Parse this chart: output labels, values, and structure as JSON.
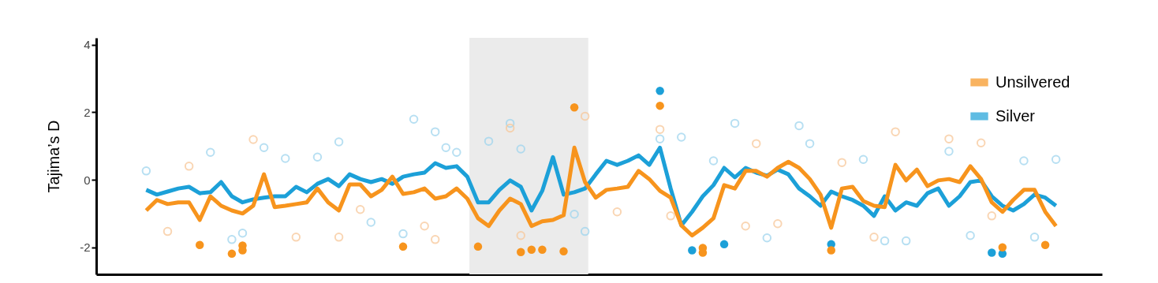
{
  "chart_data": {
    "type": "line",
    "ylabel": "Tajima’s D",
    "categories": [
      null,
      null,
      null,
      null,
      null,
      null,
      null,
      null,
      null,
      null,
      null,
      null,
      null,
      null,
      null,
      null,
      null,
      null,
      null,
      null,
      null,
      null,
      null,
      null,
      null,
      null,
      null,
      null,
      null,
      null,
      null,
      null,
      null,
      null,
      null,
      null,
      null,
      null,
      null,
      null,
      null,
      null,
      null,
      null,
      null,
      null,
      null,
      null,
      null,
      null,
      null,
      null,
      null,
      null,
      null,
      null,
      null,
      null,
      null,
      null,
      null,
      null,
      null,
      null,
      null,
      null,
      null,
      null,
      null,
      null,
      null,
      null,
      null,
      null,
      null,
      null,
      null,
      null,
      null,
      null,
      null,
      null,
      null,
      null,
      null,
      null
    ],
    "ylim": [
      -2.8,
      4.2
    ],
    "yticks": [
      -2,
      0,
      2,
      4
    ],
    "tick_labels": "y",
    "legend": "top right",
    "line_style": "solid",
    "series": [
      {
        "type": "scatter",
        "marker": "circle",
        "color": "#9fd5ee",
        "values": [
          0.26,
          null,
          null,
          null,
          null,
          null,
          0.81,
          null,
          -1.77,
          -1.58,
          null,
          0.95,
          null,
          0.63,
          null,
          null,
          0.67,
          null,
          1.12,
          null,
          null,
          -1.26,
          null,
          null,
          -1.6,
          1.79,
          null,
          1.42,
          0.95,
          0.81,
          null,
          null,
          1.14,
          null,
          1.67,
          0.91,
          null,
          null,
          null,
          null,
          -1.02,
          -1.53,
          null,
          null,
          null,
          null,
          null,
          null,
          1.21,
          null,
          1.26,
          null,
          null,
          0.56,
          null,
          1.67,
          null,
          null,
          -1.72,
          null,
          null,
          1.6,
          1.07,
          null,
          null,
          null,
          null,
          0.6,
          null,
          -1.81,
          null,
          -1.81,
          null,
          null,
          null,
          0.84,
          null,
          -1.65,
          null,
          null,
          null,
          null,
          0.56,
          -1.7,
          null,
          0.6
        ]
      },
      {
        "type": "scatter",
        "marker": "circle",
        "color": "#f8c89a",
        "values": [
          null,
          null,
          -1.53,
          null,
          0.4,
          null,
          null,
          null,
          null,
          null,
          1.19,
          null,
          null,
          null,
          -1.7,
          null,
          null,
          null,
          -1.7,
          null,
          -0.88,
          null,
          null,
          null,
          null,
          null,
          -1.37,
          -1.77,
          null,
          null,
          null,
          null,
          null,
          null,
          1.53,
          -1.65,
          null,
          null,
          null,
          null,
          null,
          1.88,
          null,
          null,
          -0.95,
          null,
          null,
          null,
          1.49,
          -1.07,
          null,
          null,
          null,
          null,
          null,
          null,
          -1.37,
          1.07,
          null,
          -1.3,
          null,
          null,
          null,
          null,
          null,
          0.51,
          null,
          null,
          -1.7,
          null,
          1.42,
          null,
          null,
          null,
          null,
          1.21,
          null,
          null,
          1.09,
          -1.07,
          null,
          null,
          null,
          null,
          null,
          null
        ]
      },
      {
        "name": "Silver",
        "color": "#1ca0d8",
        "values": [
          -0.3,
          -0.44,
          -0.35,
          -0.26,
          -0.21,
          -0.4,
          -0.37,
          -0.07,
          -0.49,
          -0.67,
          -0.58,
          -0.53,
          -0.49,
          -0.49,
          -0.21,
          -0.37,
          -0.12,
          0.02,
          -0.19,
          0.16,
          0.02,
          -0.07,
          0.02,
          -0.12,
          0.09,
          0.16,
          0.21,
          0.49,
          0.35,
          0.4,
          0.09,
          -0.67,
          -0.67,
          -0.3,
          -0.02,
          -0.21,
          -0.91,
          -0.33,
          0.67,
          -0.44,
          -0.37,
          -0.26,
          0.16,
          0.56,
          0.44,
          0.56,
          0.72,
          0.44,
          0.95,
          -0.26,
          -1.35,
          -0.95,
          -0.49,
          -0.16,
          0.35,
          0.07,
          0.35,
          0.21,
          0.12,
          0.3,
          0.16,
          -0.26,
          -0.49,
          -0.77,
          -0.35,
          -0.49,
          -0.6,
          -0.77,
          -1.07,
          -0.49,
          -0.91,
          -0.67,
          -0.77,
          -0.4,
          -0.26,
          -0.77,
          -0.49,
          -0.07,
          -0.02,
          -0.49,
          -0.77,
          -0.91,
          -0.72,
          -0.44,
          -0.53,
          -0.77
        ]
      },
      {
        "name": "Unsilvered",
        "color": "#f7941d",
        "values": [
          -0.91,
          -0.6,
          -0.72,
          -0.67,
          -0.67,
          -1.19,
          -0.49,
          -0.77,
          -0.91,
          -1.0,
          -0.77,
          0.16,
          -0.81,
          -0.77,
          -0.72,
          -0.67,
          -0.26,
          -0.67,
          -0.91,
          -0.14,
          -0.14,
          -0.49,
          -0.3,
          0.09,
          -0.42,
          -0.37,
          -0.26,
          -0.56,
          -0.49,
          -0.26,
          -0.56,
          -1.14,
          -1.37,
          -0.91,
          -0.56,
          -0.72,
          -1.37,
          -1.23,
          -1.19,
          -1.05,
          0.95,
          -0.07,
          -0.53,
          -0.3,
          -0.26,
          -0.21,
          0.26,
          0.02,
          -0.33,
          -0.53,
          -1.35,
          -1.65,
          -1.42,
          -1.14,
          -0.16,
          -0.26,
          0.26,
          0.26,
          0.09,
          0.35,
          0.53,
          0.35,
          0.02,
          -0.44,
          -1.42,
          -0.26,
          -0.21,
          -0.63,
          -0.77,
          -0.81,
          0.44,
          -0.02,
          0.3,
          -0.19,
          -0.02,
          0.02,
          -0.07,
          0.4,
          0.02,
          -0.67,
          -0.95,
          -0.6,
          -0.3,
          -0.3,
          -0.95,
          -1.37
        ]
      },
      {
        "type": "scatter",
        "marker": "circle",
        "color": "#1ca0d8",
        "values": [
          null,
          null,
          null,
          null,
          null,
          null,
          null,
          null,
          null,
          null,
          null,
          null,
          null,
          null,
          null,
          null,
          null,
          null,
          null,
          null,
          null,
          null,
          null,
          null,
          null,
          null,
          null,
          null,
          null,
          null,
          null,
          null,
          null,
          null,
          null,
          null,
          null,
          null,
          null,
          null,
          null,
          null,
          null,
          null,
          null,
          null,
          null,
          null,
          2.63,
          null,
          null,
          -2.09,
          null,
          null,
          -1.91,
          null,
          null,
          null,
          null,
          null,
          null,
          null,
          null,
          null,
          -1.91,
          null,
          null,
          null,
          null,
          null,
          null,
          null,
          null,
          null,
          null,
          null,
          null,
          null,
          null,
          -2.16,
          null,
          null,
          null,
          null,
          null,
          null
        ]
      },
      {
        "type": "scatter",
        "marker": "circle",
        "color": "#1ca0d8",
        "values": [
          null,
          null,
          null,
          null,
          null,
          null,
          null,
          null,
          null,
          null,
          null,
          null,
          null,
          null,
          null,
          null,
          null,
          null,
          null,
          null,
          null,
          null,
          null,
          null,
          null,
          null,
          null,
          null,
          null,
          null,
          null,
          null,
          null,
          null,
          null,
          null,
          null,
          null,
          null,
          null,
          null,
          null,
          null,
          null,
          null,
          null,
          null,
          null,
          null,
          null,
          null,
          null,
          null,
          null,
          null,
          null,
          null,
          null,
          null,
          null,
          null,
          null,
          null,
          null,
          null,
          null,
          null,
          null,
          null,
          null,
          null,
          null,
          null,
          null,
          null,
          null,
          null,
          null,
          null,
          null,
          -2.19,
          null,
          null,
          null,
          null,
          null
        ]
      },
      {
        "type": "scatter",
        "marker": "circle",
        "color": "#f7941d",
        "values": [
          null,
          null,
          null,
          null,
          null,
          -1.93,
          null,
          null,
          -2.19,
          -1.95,
          null,
          null,
          null,
          null,
          null,
          null,
          null,
          null,
          null,
          null,
          null,
          null,
          null,
          null,
          -1.98,
          null,
          null,
          null,
          null,
          null,
          null,
          -1.98,
          null,
          null,
          null,
          -2.14,
          -2.07,
          -2.07,
          null,
          -2.12,
          2.14,
          null,
          null,
          null,
          null,
          null,
          null,
          null,
          2.19,
          null,
          null,
          null,
          -2.02,
          null,
          null,
          null,
          null,
          null,
          null,
          null,
          null,
          null,
          null,
          null,
          -2.09,
          null,
          null,
          null,
          null,
          null,
          null,
          null,
          null,
          null,
          null,
          null,
          null,
          null,
          null,
          null,
          -2.0,
          null,
          null,
          null,
          -1.93,
          null
        ]
      },
      {
        "type": "scatter",
        "marker": "circle",
        "color": "#f7941d",
        "values": [
          null,
          null,
          null,
          null,
          null,
          null,
          null,
          null,
          null,
          -2.09,
          null,
          null,
          null,
          null,
          null,
          null,
          null,
          null,
          null,
          null,
          null,
          null,
          null,
          null,
          null,
          null,
          null,
          null,
          null,
          null,
          null,
          null,
          null,
          null,
          null,
          null,
          null,
          null,
          null,
          null,
          null,
          null,
          null,
          null,
          null,
          null,
          null,
          null,
          null,
          null,
          null,
          null,
          -2.16,
          null,
          null,
          null,
          null,
          null,
          null,
          null,
          null,
          null,
          null,
          null,
          null,
          null,
          null,
          null,
          null,
          null,
          null,
          null,
          null,
          null,
          null,
          null,
          null,
          null,
          null,
          null,
          null,
          null,
          null,
          null,
          null,
          null
        ]
      }
    ]
  }
}
